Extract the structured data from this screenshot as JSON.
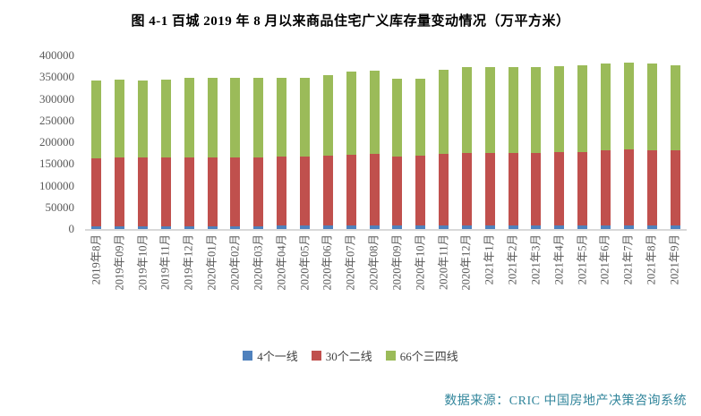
{
  "title": "图 4-1 百城 2019 年 8 月以来商品住宅广义库存量变动情况（万平方米）",
  "source_note": "数据来源：CRIC 中国房地产决策咨询系统",
  "colors": {
    "tier1": "#4F81BD",
    "tier2": "#C0504D",
    "tier34": "#9BBB59",
    "source_text": "#31859B",
    "axis_text": "#595959",
    "axis_line": "#D9D9D9",
    "title_text": "#000000"
  },
  "legend": [
    {
      "label": "4个一线",
      "color": "#4F81BD"
    },
    {
      "label": "30个二线",
      "color": "#C0504D"
    },
    {
      "label": "66个三四线",
      "color": "#9BBB59"
    }
  ],
  "chart_data": {
    "type": "bar",
    "stacked": true,
    "title": "图 4-1 百城 2019 年 8 月以来商品住宅广义库存量变动情况（万平方米）",
    "unit": "万平方米",
    "categories": [
      "2019年8月",
      "2019年09月",
      "2019年10月",
      "2019年11月",
      "2019年12月",
      "2020年01月",
      "2020年02月",
      "2020年03月",
      "2020年04月",
      "2020年05月",
      "2020年06月",
      "2020年07月",
      "2020年08月",
      "2020年09月",
      "2020年10月",
      "2020年11月",
      "2020年12月",
      "2021年1月",
      "2021年2月",
      "2021年3月",
      "2021年4月",
      "2021年5月",
      "2021年6月",
      "2021年7月",
      "2021年8月",
      "2021年9月"
    ],
    "series": [
      {
        "name": "4个一线",
        "color": "#4F81BD",
        "values": [
          6800,
          6900,
          6900,
          7000,
          7100,
          7100,
          7100,
          7200,
          7300,
          7400,
          7500,
          7600,
          7700,
          7700,
          7800,
          7900,
          8000,
          8000,
          8000,
          8100,
          8200,
          8300,
          8400,
          8500,
          8500,
          8600
        ]
      },
      {
        "name": "30个二线",
        "color": "#C0504D",
        "values": [
          156700,
          157100,
          157100,
          157500,
          158400,
          158400,
          158400,
          158800,
          159700,
          160100,
          162000,
          163900,
          166300,
          159300,
          161700,
          166100,
          166500,
          167000,
          167000,
          167400,
          168300,
          169700,
          173600,
          176000,
          172000,
          171900
        ]
      },
      {
        "name": "66个三四线",
        "color": "#9BBB59",
        "values": [
          179000,
          181000,
          179000,
          180500,
          182000,
          182500,
          182000,
          183000,
          182000,
          181500,
          185000,
          191000,
          191000,
          178500,
          177500,
          194000,
          198500,
          198000,
          198000,
          198000,
          198500,
          199000,
          199500,
          198500,
          200000,
          197500
        ]
      }
    ],
    "ylim": [
      0,
      400000
    ],
    "yticks": [
      0,
      50000,
      100000,
      150000,
      200000,
      250000,
      300000,
      350000,
      400000
    ],
    "grid": false,
    "legend_position": "bottom"
  }
}
